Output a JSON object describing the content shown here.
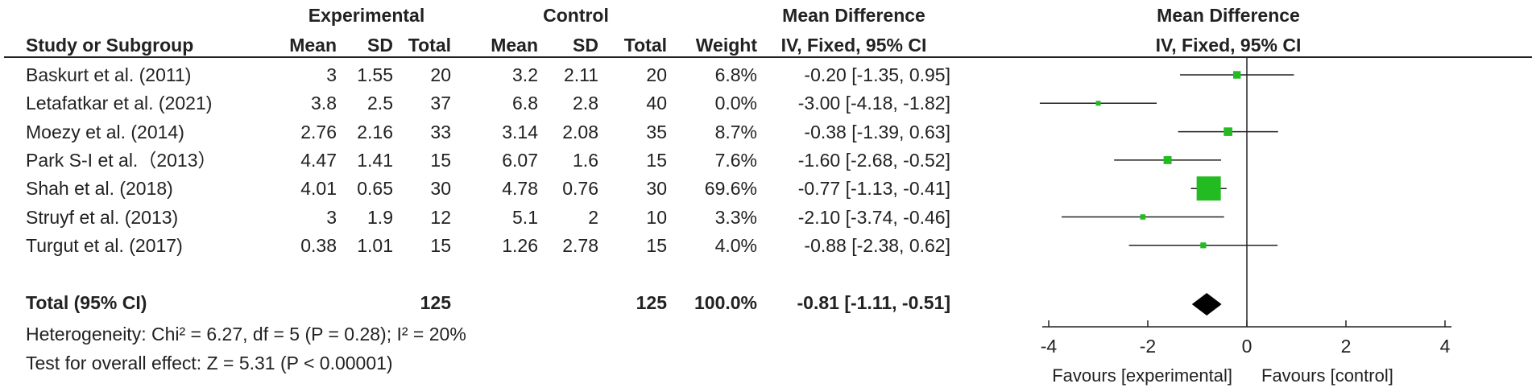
{
  "headers": {
    "group_experimental": "Experimental",
    "group_control": "Control",
    "group_effect": "Mean Difference",
    "col_study": "Study or Subgroup",
    "col_mean": "Mean",
    "col_sd": "SD",
    "col_total": "Total",
    "col_weight": "Weight",
    "col_ci": "IV, Fixed, 95% CI",
    "plot_title": "Mean Difference",
    "plot_subtitle": "IV, Fixed, 95% CI"
  },
  "studies": [
    {
      "name": "Baskurt et al. (2011)",
      "exp_mean": "3",
      "exp_sd": "1.55",
      "exp_total": "20",
      "ctl_mean": "3.2",
      "ctl_sd": "2.11",
      "ctl_total": "20",
      "weight": "6.8%",
      "ci": "-0.20 [-1.35, 0.95]"
    },
    {
      "name": "Letafatkar et al. (2021)",
      "exp_mean": "3.8",
      "exp_sd": "2.5",
      "exp_total": "37",
      "ctl_mean": "6.8",
      "ctl_sd": "2.8",
      "ctl_total": "40",
      "weight": "0.0%",
      "ci": "-3.00 [-4.18, -1.82]"
    },
    {
      "name": "Moezy et al. (2014)",
      "exp_mean": "2.76",
      "exp_sd": "2.16",
      "exp_total": "33",
      "ctl_mean": "3.14",
      "ctl_sd": "2.08",
      "ctl_total": "35",
      "weight": "8.7%",
      "ci": "-0.38 [-1.39, 0.63]"
    },
    {
      "name": "Park S-I et al.（2013）",
      "exp_mean": "4.47",
      "exp_sd": "1.41",
      "exp_total": "15",
      "ctl_mean": "6.07",
      "ctl_sd": "1.6",
      "ctl_total": "15",
      "weight": "7.6%",
      "ci": "-1.60 [-2.68, -0.52]"
    },
    {
      "name": "Shah et al. (2018)",
      "exp_mean": "4.01",
      "exp_sd": "0.65",
      "exp_total": "30",
      "ctl_mean": "4.78",
      "ctl_sd": "0.76",
      "ctl_total": "30",
      "weight": "69.6%",
      "ci": "-0.77 [-1.13, -0.41]"
    },
    {
      "name": "Struyf et al. (2013)",
      "exp_mean": "3",
      "exp_sd": "1.9",
      "exp_total": "12",
      "ctl_mean": "5.1",
      "ctl_sd": "2",
      "ctl_total": "10",
      "weight": "3.3%",
      "ci": "-2.10 [-3.74, -0.46]"
    },
    {
      "name": "Turgut et al. (2017)",
      "exp_mean": "0.38",
      "exp_sd": "1.01",
      "exp_total": "15",
      "ctl_mean": "1.26",
      "ctl_sd": "2.78",
      "ctl_total": "15",
      "weight": "4.0%",
      "ci": "-0.88 [-2.38, 0.62]"
    }
  ],
  "total": {
    "label": "Total (95% CI)",
    "exp_total": "125",
    "ctl_total": "125",
    "weight": "100.0%",
    "ci": "-0.81 [-1.11, -0.51]"
  },
  "footer": {
    "heterogeneity": "Heterogeneity: Chi² = 6.27, df = 5 (P = 0.28); I² = 20%",
    "overall_effect": "Test for overall effect: Z = 5.31 (P < 0.00001)"
  },
  "colors": {
    "marker": "#22bb22",
    "line": "#222222"
  },
  "chart_data": {
    "type": "forest",
    "xlim": [
      -4,
      4
    ],
    "ticks": [
      -4,
      -2,
      0,
      2,
      4
    ],
    "x_left_label": "Favours [experimental]",
    "x_right_label": "Favours [control]",
    "points": [
      {
        "md": -0.2,
        "lo": -1.35,
        "hi": 0.95,
        "weight": 6.8
      },
      {
        "md": -3.0,
        "lo": -4.18,
        "hi": -1.82,
        "weight": 0.0
      },
      {
        "md": -0.38,
        "lo": -1.39,
        "hi": 0.63,
        "weight": 8.7
      },
      {
        "md": -1.6,
        "lo": -2.68,
        "hi": -0.52,
        "weight": 7.6
      },
      {
        "md": -0.77,
        "lo": -1.13,
        "hi": -0.41,
        "weight": 69.6
      },
      {
        "md": -2.1,
        "lo": -3.74,
        "hi": -0.46,
        "weight": 3.3
      },
      {
        "md": -0.88,
        "lo": -2.38,
        "hi": 0.62,
        "weight": 4.0
      }
    ],
    "pooled": {
      "md": -0.81,
      "lo": -1.11,
      "hi": -0.51
    }
  }
}
